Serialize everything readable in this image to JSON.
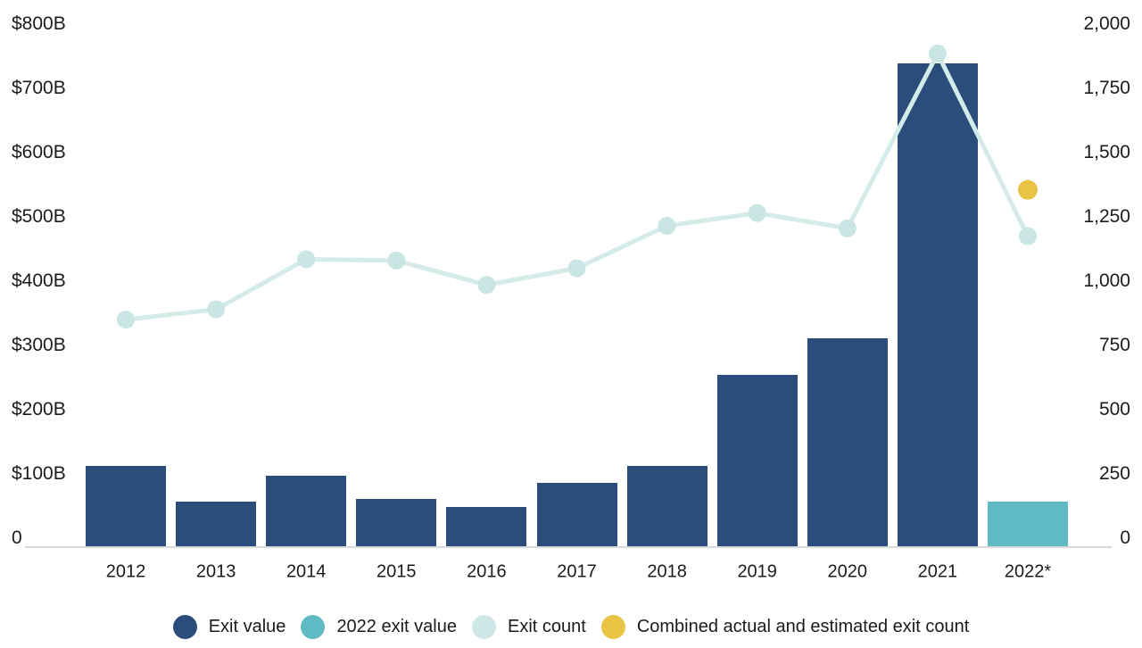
{
  "chart_data": {
    "type": "bar",
    "subtype": "combo-bar-line-dual-axis",
    "title": "",
    "categories": [
      "2012",
      "2013",
      "2014",
      "2015",
      "2016",
      "2017",
      "2018",
      "2019",
      "2020",
      "2021",
      "2022*"
    ],
    "series": [
      {
        "name": "Exit value",
        "type": "bar",
        "axis": "left",
        "unit": "$B",
        "color": "#2b4d7b",
        "values": [
          126,
          71,
          111,
          75,
          63,
          100,
          126,
          268,
          325,
          753,
          null
        ]
      },
      {
        "name": "2022 exit value",
        "type": "bar",
        "axis": "left",
        "unit": "$B",
        "color": "#5fbac4",
        "values": [
          null,
          null,
          null,
          null,
          null,
          null,
          null,
          null,
          null,
          null,
          71
        ]
      },
      {
        "name": "Exit count",
        "type": "line",
        "axis": "right",
        "unit": "exits",
        "color": "#d4ebe9",
        "dot_color": "#c9e6e4",
        "values": [
          885,
          925,
          1120,
          1115,
          1020,
          1085,
          1250,
          1300,
          1240,
          1920,
          1210
        ]
      },
      {
        "name": "Combined actual and estimated exit count",
        "type": "point",
        "axis": "right",
        "unit": "exits",
        "color": "#e9c343",
        "values": [
          null,
          null,
          null,
          null,
          null,
          null,
          null,
          null,
          null,
          null,
          1390
        ]
      }
    ],
    "left_axis": {
      "range": [
        0,
        800
      ],
      "tick_values": [
        800,
        700,
        600,
        500,
        400,
        300,
        200,
        100,
        0
      ],
      "tick_labels": [
        "$800B",
        "$700B",
        "$600B",
        "$500B",
        "$400B",
        "$300B",
        "$200B",
        "$100B",
        "0"
      ]
    },
    "right_axis": {
      "range": [
        0,
        2000
      ],
      "tick_values": [
        2000,
        1750,
        1500,
        1250,
        1000,
        750,
        500,
        250,
        0
      ],
      "tick_labels": [
        "2,000",
        "1,750",
        "1,500",
        "1,250",
        "1,000",
        "750",
        "500",
        "250",
        "0"
      ]
    },
    "grid": "off",
    "baseline_color": "#d8d8d8",
    "text_color": "#1b1b1b",
    "background": "#ffffff",
    "legend": {
      "position": "bottom-center",
      "items": [
        {
          "label": "Exit value",
          "color": "#2b4d7b"
        },
        {
          "label": "2022 exit value",
          "color": "#5fbac4"
        },
        {
          "label": "Exit count",
          "color": "#cfe8e7"
        },
        {
          "label": "Combined actual and estimated exit count",
          "color": "#e9c343"
        }
      ]
    }
  }
}
